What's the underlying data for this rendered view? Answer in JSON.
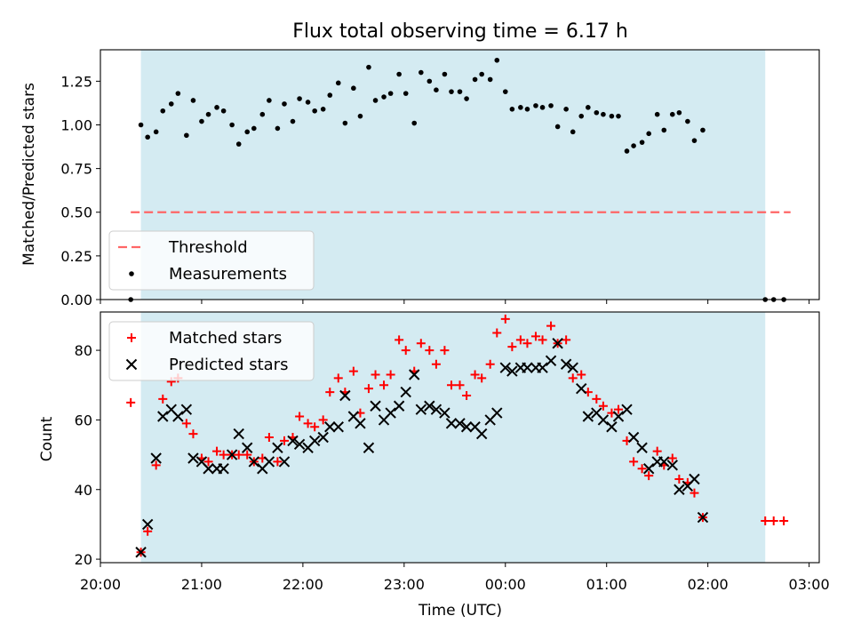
{
  "chart_data": [
    {
      "type": "scatter",
      "title": "Flux total observing time = 6.17 h",
      "xlabel": "",
      "ylabel": "Matched/Predicted stars",
      "ylim": [
        0,
        1.43
      ],
      "y_ticks": [
        "0.00",
        "0.25",
        "0.50",
        "0.75",
        "1.00",
        "1.25"
      ],
      "shaded_region": {
        "from": "20:24",
        "to": "02:34",
        "color": "#add8e6"
      },
      "legend": {
        "position": "lower-left",
        "entries": [
          "Threshold",
          "Measurements"
        ]
      },
      "series": [
        {
          "name": "Threshold",
          "style": "dashed-line",
          "color": "#ff6666",
          "points": [
            [
              "20:18",
              0.5
            ],
            [
              "02:49",
              0.5
            ]
          ]
        },
        {
          "name": "Measurements",
          "style": "dot",
          "color": "#000000",
          "points": [
            [
              "20:18",
              0.0
            ],
            [
              "20:24",
              1.0
            ],
            [
              "20:28",
              0.93
            ],
            [
              "20:33",
              0.96
            ],
            [
              "20:37",
              1.08
            ],
            [
              "20:42",
              1.12
            ],
            [
              "20:46",
              1.18
            ],
            [
              "20:51",
              0.94
            ],
            [
              "20:55",
              1.14
            ],
            [
              "21:00",
              1.02
            ],
            [
              "21:04",
              1.06
            ],
            [
              "21:09",
              1.1
            ],
            [
              "21:13",
              1.08
            ],
            [
              "21:18",
              1.0
            ],
            [
              "21:22",
              0.89
            ],
            [
              "21:27",
              0.96
            ],
            [
              "21:31",
              0.98
            ],
            [
              "21:36",
              1.06
            ],
            [
              "21:40",
              1.14
            ],
            [
              "21:45",
              0.98
            ],
            [
              "21:49",
              1.12
            ],
            [
              "21:54",
              1.02
            ],
            [
              "21:58",
              1.15
            ],
            [
              "22:03",
              1.13
            ],
            [
              "22:07",
              1.08
            ],
            [
              "22:12",
              1.09
            ],
            [
              "22:16",
              1.17
            ],
            [
              "22:21",
              1.24
            ],
            [
              "22:25",
              1.01
            ],
            [
              "22:30",
              1.21
            ],
            [
              "22:34",
              1.05
            ],
            [
              "22:39",
              1.33
            ],
            [
              "22:43",
              1.14
            ],
            [
              "22:48",
              1.16
            ],
            [
              "22:52",
              1.18
            ],
            [
              "22:57",
              1.29
            ],
            [
              "23:01",
              1.18
            ],
            [
              "23:06",
              1.01
            ],
            [
              "23:10",
              1.3
            ],
            [
              "23:15",
              1.25
            ],
            [
              "23:19",
              1.2
            ],
            [
              "23:24",
              1.29
            ],
            [
              "23:28",
              1.19
            ],
            [
              "23:33",
              1.19
            ],
            [
              "23:37",
              1.15
            ],
            [
              "23:42",
              1.26
            ],
            [
              "23:46",
              1.29
            ],
            [
              "23:51",
              1.26
            ],
            [
              "23:55",
              1.37
            ],
            [
              "00:00",
              1.19
            ],
            [
              "00:04",
              1.09
            ],
            [
              "00:09",
              1.1
            ],
            [
              "00:13",
              1.09
            ],
            [
              "00:18",
              1.11
            ],
            [
              "00:22",
              1.1
            ],
            [
              "00:27",
              1.11
            ],
            [
              "00:31",
              0.99
            ],
            [
              "00:36",
              1.09
            ],
            [
              "00:40",
              0.96
            ],
            [
              "00:45",
              1.05
            ],
            [
              "00:49",
              1.1
            ],
            [
              "00:54",
              1.07
            ],
            [
              "00:58",
              1.06
            ],
            [
              "01:03",
              1.05
            ],
            [
              "01:07",
              1.05
            ],
            [
              "01:12",
              0.85
            ],
            [
              "01:16",
              0.88
            ],
            [
              "01:21",
              0.9
            ],
            [
              "01:25",
              0.95
            ],
            [
              "01:30",
              1.06
            ],
            [
              "01:34",
              0.97
            ],
            [
              "01:39",
              1.06
            ],
            [
              "01:43",
              1.07
            ],
            [
              "01:48",
              1.02
            ],
            [
              "01:52",
              0.91
            ],
            [
              "01:57",
              0.97
            ],
            [
              "02:34",
              0.0
            ],
            [
              "02:39",
              0.0
            ],
            [
              "02:45",
              0.0
            ]
          ]
        }
      ]
    },
    {
      "type": "scatter",
      "title": "",
      "xlabel": "Time (UTC)",
      "ylabel": "Count",
      "ylim": [
        19,
        91
      ],
      "x_ticks": [
        "20:00",
        "21:00",
        "22:00",
        "23:00",
        "00:00",
        "01:00",
        "02:00",
        "03:00"
      ],
      "y_ticks": [
        "20",
        "40",
        "60",
        "80"
      ],
      "shaded_region": {
        "from": "20:24",
        "to": "02:34",
        "color": "#add8e6"
      },
      "legend": {
        "position": "upper-left",
        "entries": [
          "Matched stars",
          "Predicted stars"
        ]
      },
      "series": [
        {
          "name": "Matched stars",
          "style": "plus",
          "color": "#ff0000",
          "points": [
            [
              "20:18",
              65
            ],
            [
              "20:24",
              22
            ],
            [
              "20:28",
              28
            ],
            [
              "20:33",
              47
            ],
            [
              "20:37",
              66
            ],
            [
              "20:42",
              71
            ],
            [
              "20:46",
              72
            ],
            [
              "20:51",
              59
            ],
            [
              "20:55",
              56
            ],
            [
              "21:00",
              49
            ],
            [
              "21:04",
              48
            ],
            [
              "21:09",
              51
            ],
            [
              "21:13",
              50
            ],
            [
              "21:18",
              50
            ],
            [
              "21:22",
              50
            ],
            [
              "21:27",
              50
            ],
            [
              "21:31",
              48
            ],
            [
              "21:36",
              49
            ],
            [
              "21:40",
              55
            ],
            [
              "21:45",
              48
            ],
            [
              "21:49",
              54
            ],
            [
              "21:54",
              55
            ],
            [
              "21:58",
              61
            ],
            [
              "22:03",
              59
            ],
            [
              "22:07",
              58
            ],
            [
              "22:12",
              60
            ],
            [
              "22:16",
              68
            ],
            [
              "22:21",
              72
            ],
            [
              "22:25",
              68
            ],
            [
              "22:30",
              74
            ],
            [
              "22:34",
              62
            ],
            [
              "22:39",
              69
            ],
            [
              "22:43",
              73
            ],
            [
              "22:48",
              70
            ],
            [
              "22:52",
              73
            ],
            [
              "22:57",
              83
            ],
            [
              "23:01",
              80
            ],
            [
              "23:06",
              74
            ],
            [
              "23:10",
              82
            ],
            [
              "23:15",
              80
            ],
            [
              "23:19",
              76
            ],
            [
              "23:24",
              80
            ],
            [
              "23:28",
              70
            ],
            [
              "23:33",
              70
            ],
            [
              "23:37",
              67
            ],
            [
              "23:42",
              73
            ],
            [
              "23:46",
              72
            ],
            [
              "23:51",
              76
            ],
            [
              "23:55",
              85
            ],
            [
              "00:00",
              89
            ],
            [
              "00:04",
              81
            ],
            [
              "00:09",
              83
            ],
            [
              "00:13",
              82
            ],
            [
              "00:18",
              84
            ],
            [
              "00:22",
              83
            ],
            [
              "00:27",
              87
            ],
            [
              "00:31",
              82
            ],
            [
              "00:36",
              83
            ],
            [
              "00:40",
              72
            ],
            [
              "00:45",
              73
            ],
            [
              "00:49",
              68
            ],
            [
              "00:54",
              66
            ],
            [
              "00:58",
              64
            ],
            [
              "01:03",
              62
            ],
            [
              "01:07",
              63
            ],
            [
              "01:12",
              54
            ],
            [
              "01:16",
              48
            ],
            [
              "01:21",
              46
            ],
            [
              "01:25",
              44
            ],
            [
              "01:30",
              51
            ],
            [
              "01:34",
              47
            ],
            [
              "01:39",
              49
            ],
            [
              "01:43",
              43
            ],
            [
              "01:48",
              42
            ],
            [
              "01:52",
              39
            ],
            [
              "01:57",
              32
            ],
            [
              "02:34",
              31
            ],
            [
              "02:39",
              31
            ],
            [
              "02:45",
              31
            ]
          ]
        },
        {
          "name": "Predicted stars",
          "style": "x",
          "color": "#000000",
          "points": [
            [
              "20:24",
              22
            ],
            [
              "20:28",
              30
            ],
            [
              "20:33",
              49
            ],
            [
              "20:37",
              61
            ],
            [
              "20:42",
              63
            ],
            [
              "20:46",
              61
            ],
            [
              "20:51",
              63
            ],
            [
              "20:55",
              49
            ],
            [
              "21:00",
              48
            ],
            [
              "21:04",
              46
            ],
            [
              "21:09",
              46
            ],
            [
              "21:13",
              46
            ],
            [
              "21:18",
              50
            ],
            [
              "21:22",
              56
            ],
            [
              "21:27",
              52
            ],
            [
              "21:31",
              48
            ],
            [
              "21:36",
              46
            ],
            [
              "21:40",
              48
            ],
            [
              "21:45",
              52
            ],
            [
              "21:49",
              48
            ],
            [
              "21:54",
              54
            ],
            [
              "21:58",
              53
            ],
            [
              "22:03",
              52
            ],
            [
              "22:07",
              54
            ],
            [
              "22:12",
              55
            ],
            [
              "22:16",
              58
            ],
            [
              "22:21",
              58
            ],
            [
              "22:25",
              67
            ],
            [
              "22:30",
              61
            ],
            [
              "22:34",
              59
            ],
            [
              "22:39",
              52
            ],
            [
              "22:43",
              64
            ],
            [
              "22:48",
              60
            ],
            [
              "22:52",
              62
            ],
            [
              "22:57",
              64
            ],
            [
              "23:01",
              68
            ],
            [
              "23:06",
              73
            ],
            [
              "23:10",
              63
            ],
            [
              "23:15",
              64
            ],
            [
              "23:19",
              63
            ],
            [
              "23:24",
              62
            ],
            [
              "23:28",
              59
            ],
            [
              "23:33",
              59
            ],
            [
              "23:37",
              58
            ],
            [
              "23:42",
              58
            ],
            [
              "23:46",
              56
            ],
            [
              "23:51",
              60
            ],
            [
              "23:55",
              62
            ],
            [
              "00:00",
              75
            ],
            [
              "00:04",
              74
            ],
            [
              "00:09",
              75
            ],
            [
              "00:13",
              75
            ],
            [
              "00:18",
              75
            ],
            [
              "00:22",
              75
            ],
            [
              "00:27",
              77
            ],
            [
              "00:31",
              82
            ],
            [
              "00:36",
              76
            ],
            [
              "00:40",
              75
            ],
            [
              "00:45",
              69
            ],
            [
              "00:49",
              61
            ],
            [
              "00:54",
              62
            ],
            [
              "00:58",
              60
            ],
            [
              "01:03",
              58
            ],
            [
              "01:07",
              61
            ],
            [
              "01:12",
              63
            ],
            [
              "01:16",
              55
            ],
            [
              "01:21",
              52
            ],
            [
              "01:25",
              46
            ],
            [
              "01:30",
              48
            ],
            [
              "01:34",
              48
            ],
            [
              "01:39",
              47
            ],
            [
              "01:43",
              40
            ],
            [
              "01:48",
              41
            ],
            [
              "01:52",
              43
            ],
            [
              "01:57",
              32
            ]
          ]
        }
      ]
    }
  ]
}
